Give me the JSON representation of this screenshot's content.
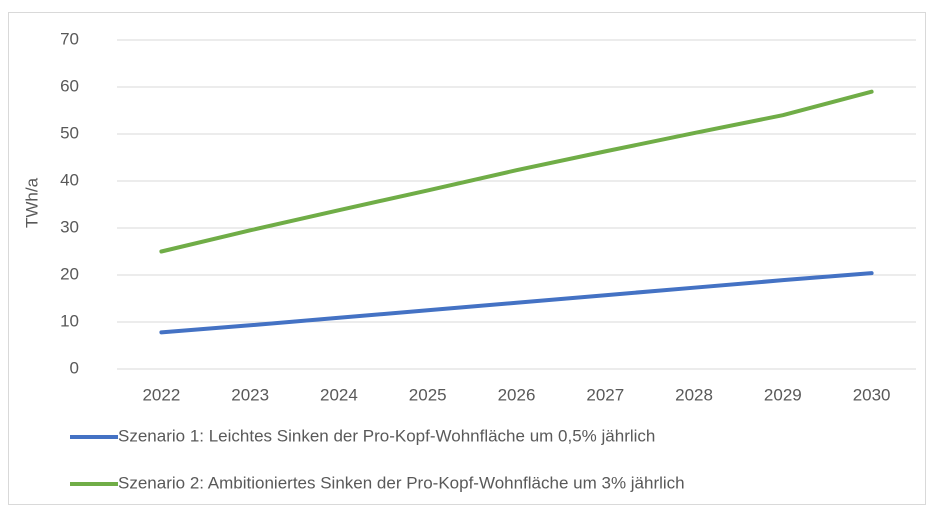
{
  "chart_data": {
    "type": "line",
    "y_label": "TWh/a",
    "categories": [
      "2022",
      "2023",
      "2024",
      "2025",
      "2026",
      "2027",
      "2028",
      "2029",
      "2030"
    ],
    "series": [
      {
        "name": "Szenario 1: Leichtes Sinken der Pro-Kopf-Wohnfläche um 0,5% jährlich",
        "color": "#4472c4",
        "values": [
          7.8,
          9.3,
          10.9,
          12.5,
          14.1,
          15.7,
          17.3,
          18.9,
          20.4
        ]
      },
      {
        "name": "Szenario 2: Ambitioniertes Sinken der Pro-Kopf-Wohnfläche um 3% jährlich",
        "color": "#70ad47",
        "values": [
          25,
          29.5,
          33.8,
          38,
          42.3,
          46.3,
          50.2,
          54,
          59
        ]
      }
    ],
    "ylim": [
      0,
      70
    ],
    "yticks": [
      0,
      10,
      20,
      30,
      40,
      50,
      60,
      70
    ],
    "grid": true,
    "legend": "bottom"
  }
}
